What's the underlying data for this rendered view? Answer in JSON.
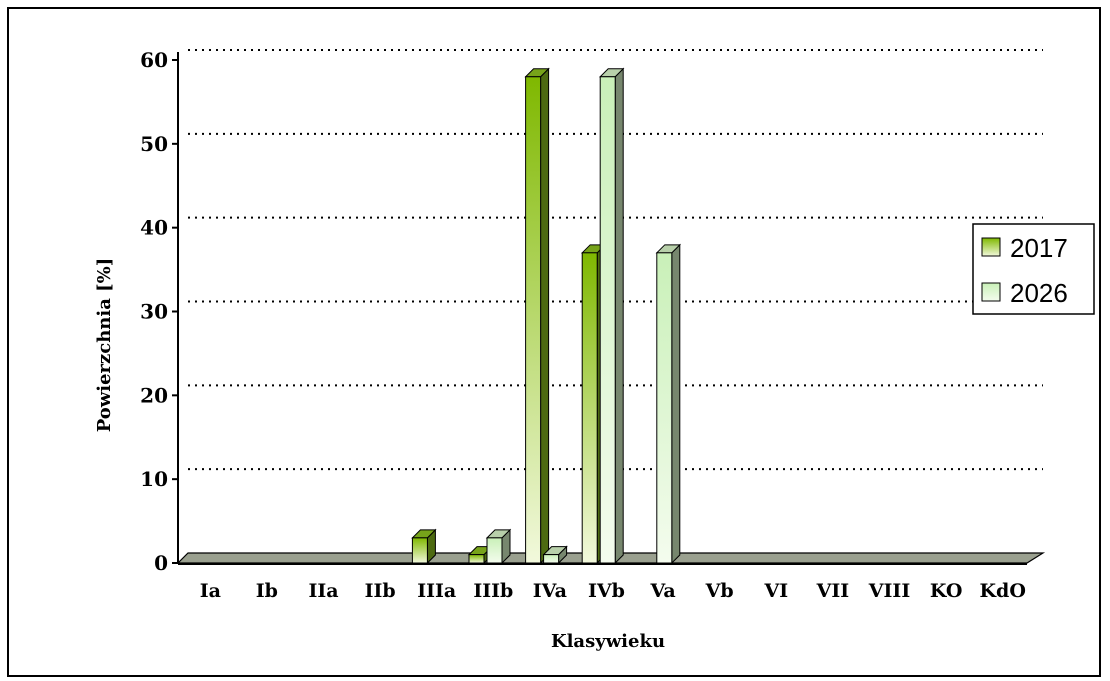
{
  "chart_data": {
    "type": "bar",
    "title": "",
    "xlabel": "Klasywieku",
    "ylabel": "Powierzchnia [%]",
    "ylim": [
      0,
      60
    ],
    "yticks": [
      0,
      10,
      20,
      30,
      40,
      50,
      60
    ],
    "grid": true,
    "legend_position": "right",
    "categories": [
      "Ia",
      "Ib",
      "IIa",
      "IIb",
      "IIIa",
      "IIIb",
      "IVa",
      "IVb",
      "Va",
      "Vb",
      "VI",
      "VII",
      "VIII",
      "KO",
      "KdO"
    ],
    "series": [
      {
        "name": "2017",
        "color": "#8cc01e",
        "values": [
          0,
          0,
          0,
          0,
          3,
          1,
          58,
          37,
          0,
          0,
          0,
          0,
          0,
          0,
          0
        ]
      },
      {
        "name": "2026",
        "color": "#d8f5c8",
        "values": [
          0,
          0,
          0,
          0,
          0,
          3,
          1,
          58,
          37,
          0,
          0,
          0,
          0,
          0,
          0
        ]
      }
    ]
  }
}
